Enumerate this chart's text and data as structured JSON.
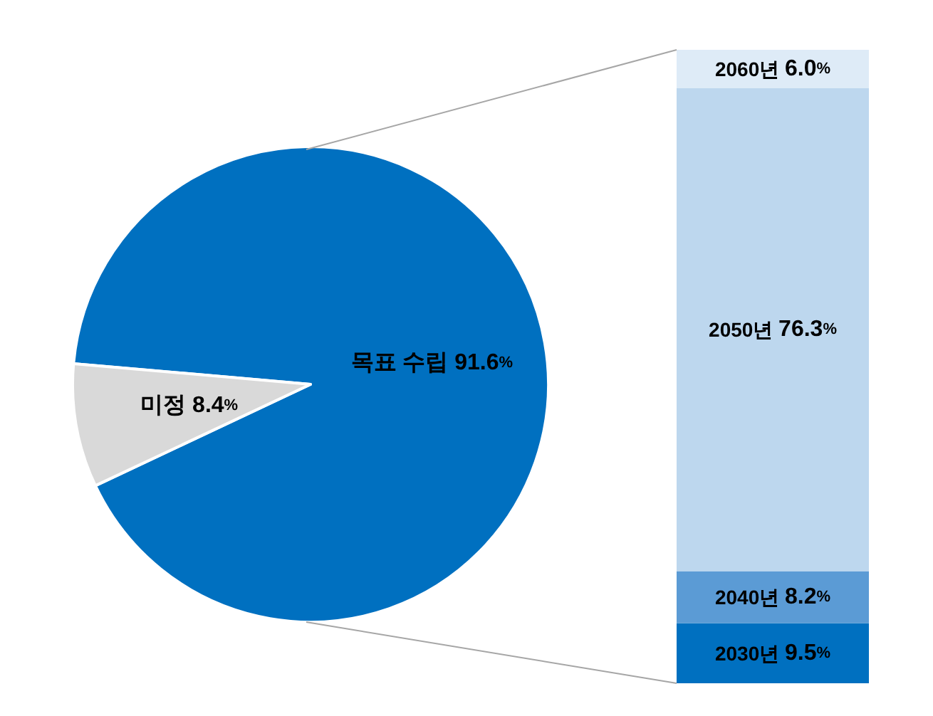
{
  "chart_data": [
    {
      "type": "pie",
      "categories": [
        "목표 수립",
        "미정"
      ],
      "values": [
        91.6,
        8.4
      ],
      "colors": [
        "#0070c0",
        "#d9d9d9"
      ],
      "value_labels": [
        "91.6%",
        "8.4%"
      ]
    },
    {
      "type": "bar",
      "stacked": true,
      "categories": [
        null
      ],
      "series": [
        {
          "name": "2030년",
          "color": "#0070c0",
          "values": [
            9.5
          ],
          "value_labels": [
            "9.5%"
          ]
        },
        {
          "name": "2040년",
          "color": "#5b9bd5",
          "values": [
            8.2
          ],
          "value_labels": [
            "8.2%"
          ]
        },
        {
          "name": "2050년",
          "color": "#bdd7ee",
          "values": [
            76.3
          ],
          "value_labels": [
            "76.3%"
          ]
        },
        {
          "name": "2060년",
          "color": "#deebf7",
          "values": [
            6.0
          ],
          "value_labels": [
            "6.0%"
          ]
        }
      ]
    }
  ]
}
